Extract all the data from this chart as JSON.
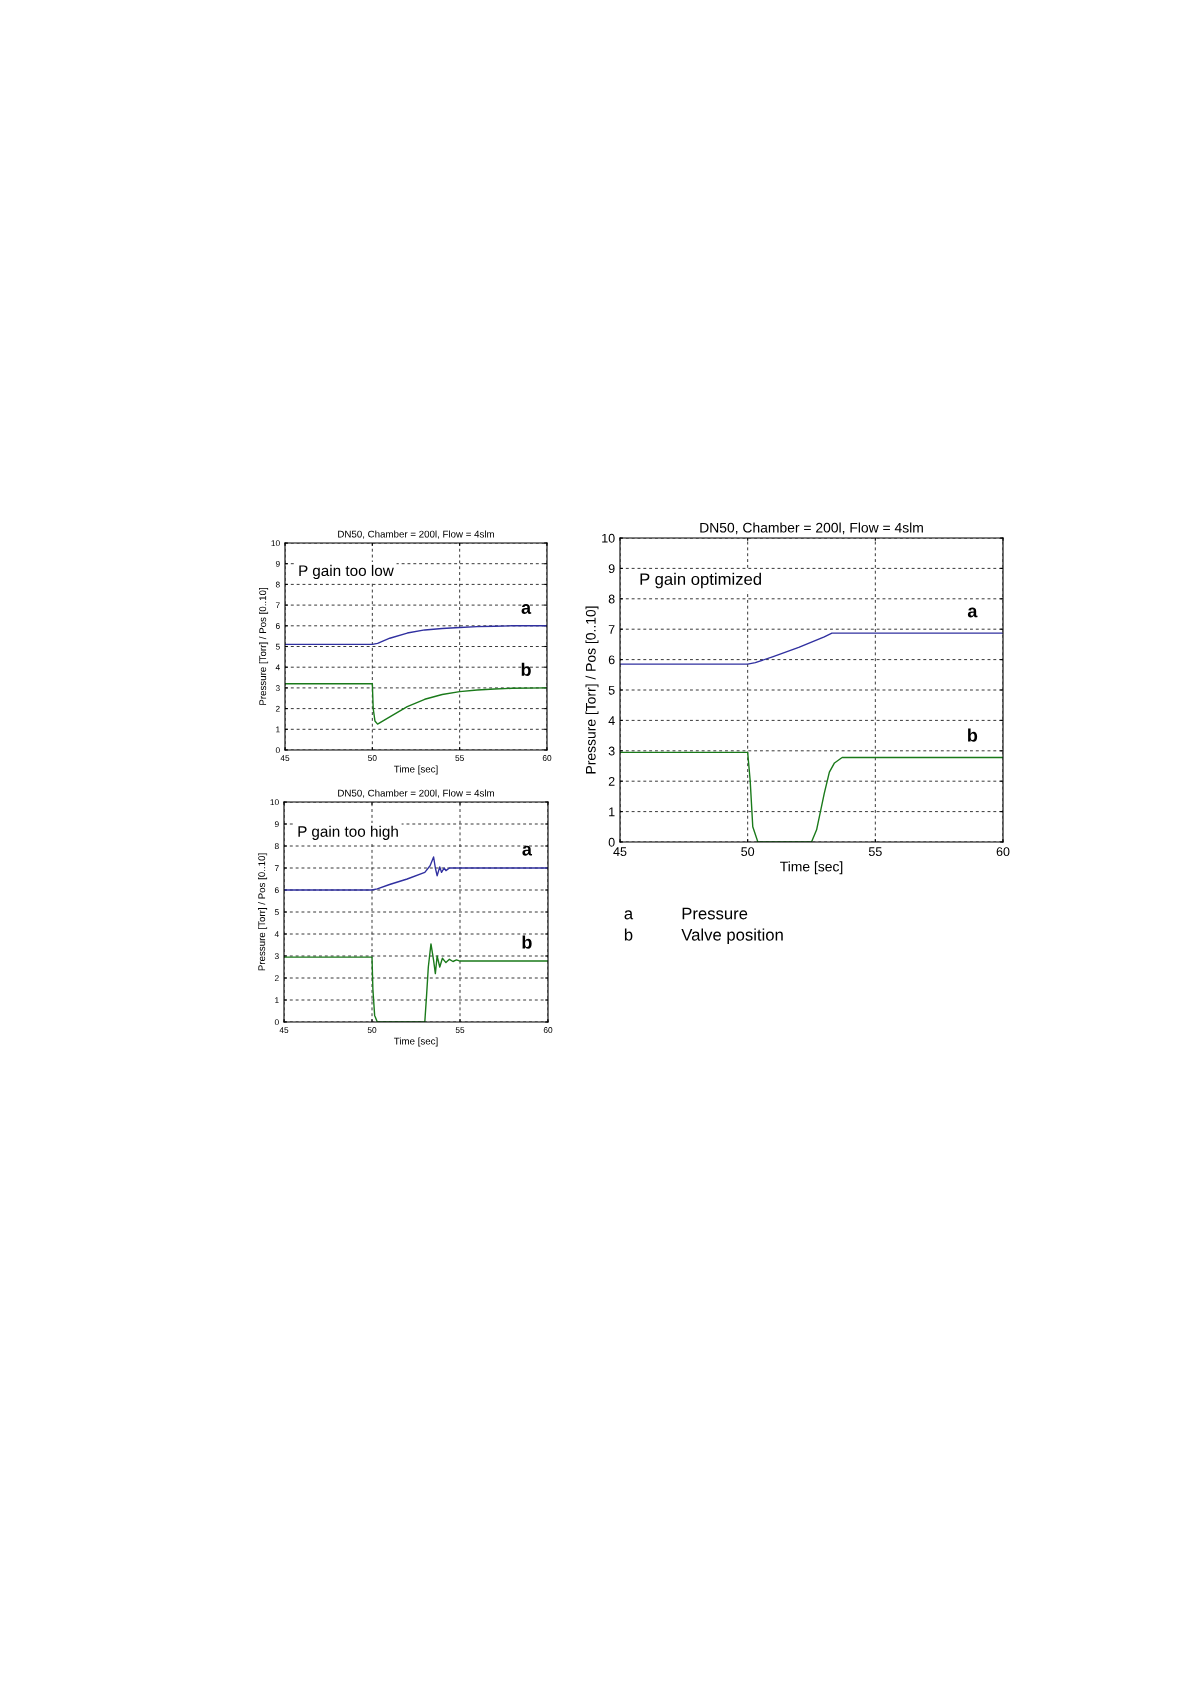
{
  "chart_data": [
    {
      "type": "line",
      "title": "DN50, Chamber = 200l, Flow = 4slm",
      "xlabel": "Time [sec]",
      "ylabel": "Pressure [Torr] / Pos [0..10]",
      "xlim": [
        45,
        60
      ],
      "ylim": [
        0,
        10
      ],
      "xticks": [
        45,
        50,
        55,
        60
      ],
      "yticks": [
        0,
        1,
        2,
        3,
        4,
        5,
        6,
        7,
        8,
        9,
        10
      ],
      "grid": true,
      "legend": false,
      "line_style": "solid",
      "marker": "none",
      "annotations": [
        "P gain too low"
      ],
      "series": [
        {
          "name": "a",
          "color": "#3030a0",
          "x": [
            45,
            50,
            50.3,
            51,
            52,
            53,
            54,
            55,
            56,
            57,
            58,
            60
          ],
          "values": [
            5.1,
            5.1,
            5.15,
            5.4,
            5.65,
            5.8,
            5.87,
            5.92,
            5.96,
            5.98,
            6.0,
            6.0
          ]
        },
        {
          "name": "b",
          "color": "#1a7a1a",
          "x": [
            45,
            50,
            50.05,
            50.15,
            50.3,
            51,
            52,
            53,
            54,
            55,
            56,
            57,
            58,
            60
          ],
          "values": [
            3.2,
            3.2,
            2.0,
            1.4,
            1.25,
            1.6,
            2.1,
            2.45,
            2.68,
            2.82,
            2.9,
            2.95,
            2.98,
            3.0
          ]
        }
      ]
    },
    {
      "type": "line",
      "title": "DN50, Chamber = 200l, Flow = 4slm",
      "xlabel": "Time [sec]",
      "ylabel": "Pressure [Torr] / Pos [0..10]",
      "xlim": [
        45,
        60
      ],
      "ylim": [
        0,
        10
      ],
      "xticks": [
        45,
        50,
        55,
        60
      ],
      "yticks": [
        0,
        1,
        2,
        3,
        4,
        5,
        6,
        7,
        8,
        9,
        10
      ],
      "grid": true,
      "legend": false,
      "line_style": "solid",
      "marker": "none",
      "annotations": [
        "P gain optimized",
        "a",
        "Pressure",
        "b",
        "Valve position"
      ],
      "series": [
        {
          "name": "a",
          "color": "#3030a0",
          "x": [
            45,
            50,
            50.3,
            51,
            52,
            53,
            53.3,
            60
          ],
          "values": [
            5.85,
            5.85,
            5.9,
            6.1,
            6.4,
            6.75,
            6.87,
            6.87
          ]
        },
        {
          "name": "b",
          "color": "#1a7a1a",
          "x": [
            45,
            50,
            50.1,
            50.2,
            50.4,
            52.5,
            52.7,
            53,
            53.2,
            53.4,
            53.7,
            60
          ],
          "values": [
            2.95,
            2.95,
            2.0,
            0.5,
            0,
            0,
            0.4,
            1.6,
            2.3,
            2.6,
            2.78,
            2.78
          ]
        }
      ]
    },
    {
      "type": "line",
      "title": "DN50, Chamber = 200l, Flow = 4slm",
      "xlabel": "Time [sec]",
      "ylabel": "Pressure [Torr] / Pos [0..10]",
      "xlim": [
        45,
        60
      ],
      "ylim": [
        0,
        10
      ],
      "xticks": [
        45,
        50,
        55,
        60
      ],
      "yticks": [
        0,
        1,
        2,
        3,
        4,
        5,
        6,
        7,
        8,
        9,
        10
      ],
      "grid": true,
      "legend": false,
      "line_style": "solid",
      "marker": "none",
      "annotations": [
        "P gain too high"
      ],
      "series": [
        {
          "name": "a",
          "color": "#3030a0",
          "x": [
            45,
            50,
            50.3,
            51,
            52,
            53,
            53.3,
            53.5,
            53.6,
            53.7,
            53.85,
            53.95,
            54.1,
            54.2,
            54.4,
            60
          ],
          "values": [
            6.0,
            6.0,
            6.05,
            6.25,
            6.5,
            6.8,
            7.1,
            7.5,
            7.0,
            6.65,
            7.05,
            6.8,
            7.0,
            6.88,
            7.0,
            7.0
          ]
        },
        {
          "name": "b",
          "color": "#1a7a1a",
          "x": [
            45,
            50,
            50.05,
            50.15,
            50.3,
            53.0,
            53.1,
            53.2,
            53.35,
            53.5,
            53.6,
            53.7,
            53.85,
            54.0,
            54.2,
            54.4,
            54.6,
            54.8,
            55,
            60
          ],
          "values": [
            2.95,
            2.95,
            1.5,
            0.3,
            0,
            0,
            1.2,
            2.5,
            3.55,
            2.8,
            2.2,
            3.0,
            2.5,
            2.9,
            2.7,
            2.85,
            2.75,
            2.82,
            2.77,
            2.77
          ]
        }
      ]
    }
  ]
}
